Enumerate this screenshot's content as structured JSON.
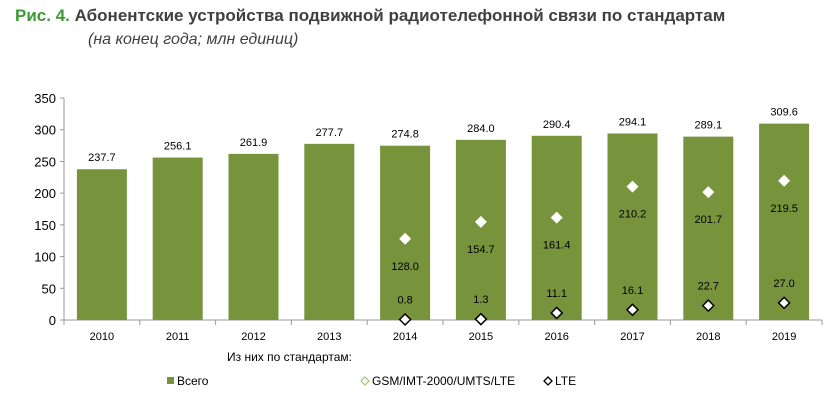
{
  "title_prefix": "Рис. 4.",
  "title": "Абонентские устройства подвижной радиотелефонной связи по стандартам",
  "subtitle": "(на конец года; млн единиц)",
  "colors": {
    "bar": "#77933c",
    "title_accent": "#3e9a35",
    "text": "#404040"
  },
  "chart_data": {
    "type": "bar",
    "categories": [
      "2010",
      "2011",
      "2012",
      "2013",
      "2014",
      "2015",
      "2016",
      "2017",
      "2018",
      "2019"
    ],
    "ylim": [
      0,
      350
    ],
    "yticks": [
      0,
      50,
      100,
      150,
      200,
      250,
      300,
      350
    ],
    "grid": false,
    "legend_position": "bottom",
    "legend_caption": "Из них по стандартам:",
    "series": [
      {
        "name": "Всего",
        "kind": "bar",
        "values": [
          237.7,
          256.1,
          261.9,
          277.7,
          274.8,
          284.0,
          290.4,
          294.1,
          289.1,
          309.6
        ],
        "labels": [
          "237.7",
          "256.1",
          "261.9",
          "277.7",
          "274.8",
          "284.0",
          "290.4",
          "294.1",
          "289.1",
          "309.6"
        ]
      },
      {
        "name": "GSM/IMT-2000/UMTS/LTE",
        "kind": "marker",
        "marker": "white-diamond",
        "values": [
          null,
          null,
          null,
          null,
          128.0,
          154.7,
          161.4,
          210.2,
          201.7,
          219.5
        ],
        "labels": [
          null,
          null,
          null,
          null,
          "128.0",
          "154.7",
          "161.4",
          "210.2",
          "201.7",
          "219.5"
        ]
      },
      {
        "name": "LTE",
        "kind": "marker",
        "marker": "outlined-diamond",
        "values": [
          null,
          null,
          null,
          null,
          0.8,
          1.3,
          11.1,
          16.1,
          22.7,
          27.0
        ],
        "labels": [
          null,
          null,
          null,
          null,
          "0.8",
          "1.3",
          "11.1",
          "16.1",
          "22.7",
          "27.0"
        ]
      }
    ]
  }
}
